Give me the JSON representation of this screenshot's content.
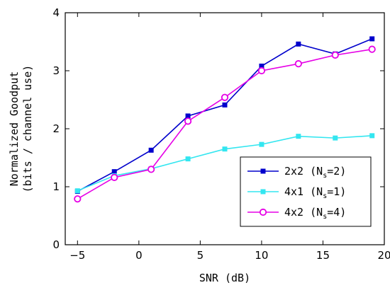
{
  "chart_data": {
    "type": "line",
    "title": "",
    "xlabel": "SNR (dB)",
    "ylabel_line1": "Normalized Goodput",
    "ylabel_line2": "(bits / channel use)",
    "xlim": [
      -6,
      20
    ],
    "ylim": [
      0,
      4
    ],
    "xticks": [
      -5,
      0,
      5,
      10,
      15,
      20
    ],
    "yticks": [
      0,
      1,
      2,
      3,
      4
    ],
    "grid": false,
    "legend_position": "bottom-right",
    "x": [
      -5,
      -2,
      1,
      4,
      7,
      10,
      13,
      16,
      19
    ],
    "series": [
      {
        "name": "2x2",
        "name_param": "(N",
        "name_sub": "s",
        "name_value": "=2)",
        "color": "#0000cc",
        "marker": "square-filled",
        "values": [
          0.92,
          1.26,
          1.63,
          2.22,
          2.41,
          3.08,
          3.46,
          3.29,
          3.55
        ]
      },
      {
        "name": "4x1",
        "name_param": "(N",
        "name_sub": "s",
        "name_value": "=1)",
        "color": "#33e6f0",
        "marker": "square-filled",
        "values": [
          0.93,
          1.19,
          1.31,
          1.48,
          1.65,
          1.73,
          1.87,
          1.84,
          1.88
        ]
      },
      {
        "name": "4x2",
        "name_param": "(N",
        "name_sub": "s",
        "name_value": "=4)",
        "color": "#e600e6",
        "marker": "circle-open",
        "values": [
          0.79,
          1.16,
          1.3,
          2.13,
          2.54,
          3.0,
          3.12,
          3.27,
          3.37
        ]
      }
    ]
  }
}
